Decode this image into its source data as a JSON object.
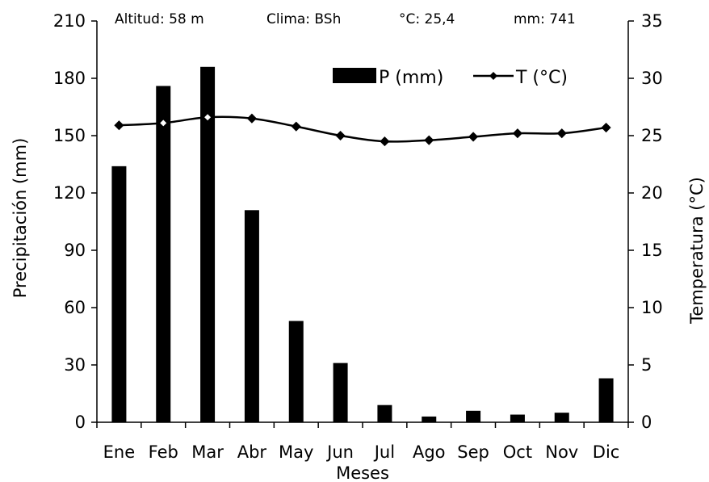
{
  "header": {
    "altitud": "Altitud: 58 m",
    "clima": "Clima: BSh",
    "temp_media": "°C: 25,4",
    "precip_total": "mm: 741"
  },
  "chart_data": {
    "type": "bar+line",
    "categories": [
      "Ene",
      "Feb",
      "Mar",
      "Abr",
      "May",
      "Jun",
      "Jul",
      "Ago",
      "Sep",
      "Oct",
      "Nov",
      "Dic"
    ],
    "series": [
      {
        "name": "P (mm)",
        "type": "bar",
        "axis": "left",
        "color": "#000000",
        "values": [
          134,
          176,
          186,
          111,
          53,
          31,
          9,
          3,
          6,
          4,
          5,
          23
        ]
      },
      {
        "name": "T (°C)",
        "type": "line",
        "axis": "right",
        "color": "#000000",
        "marker": "diamond",
        "values": [
          25.9,
          26.1,
          26.6,
          26.5,
          25.8,
          25.0,
          24.5,
          24.6,
          24.9,
          25.2,
          25.2,
          25.7
        ]
      }
    ],
    "xlabel": "Meses",
    "ylabel_left": "Precipitación (mm)",
    "ylabel_right": "Temperatura (°C)",
    "ylim_left": [
      0,
      210
    ],
    "yticks_left": [
      0,
      30,
      60,
      90,
      120,
      150,
      180,
      210
    ],
    "ylim_right": [
      0,
      35
    ],
    "yticks_right": [
      0,
      5,
      10,
      15,
      20,
      25,
      30,
      35
    ],
    "grid": false,
    "legend_position": "top-right"
  }
}
